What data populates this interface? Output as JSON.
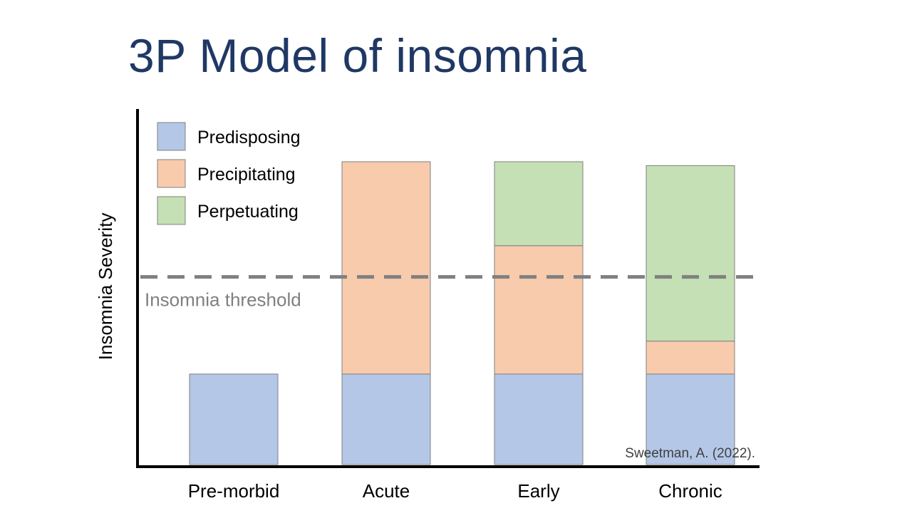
{
  "slide": {
    "title": "3P Model of insomnia",
    "source": "Sweetman, A. (2022)."
  },
  "chart_data": {
    "type": "bar",
    "stacked": true,
    "title": "3P Model of insomnia",
    "xlabel": "",
    "ylabel": "Insomnia Severity",
    "ylim": [
      0,
      100
    ],
    "grid": false,
    "legend_position": "top-left",
    "categories": [
      "Pre-morbid",
      "Acute",
      "Early",
      "Chronic"
    ],
    "series": [
      {
        "name": "Predisposing",
        "color": "#b4c7e7",
        "values": [
          27.5,
          27.5,
          27.5,
          27.5
        ]
      },
      {
        "name": "Precipitating",
        "color": "#f8cbad",
        "values": [
          0,
          64.5,
          39,
          10
        ]
      },
      {
        "name": "Perpetuating",
        "color": "#c5e0b4",
        "values": [
          0,
          0,
          25.5,
          53.3
        ]
      }
    ],
    "threshold": {
      "label": "Insomnia threshold",
      "value": 57
    }
  }
}
